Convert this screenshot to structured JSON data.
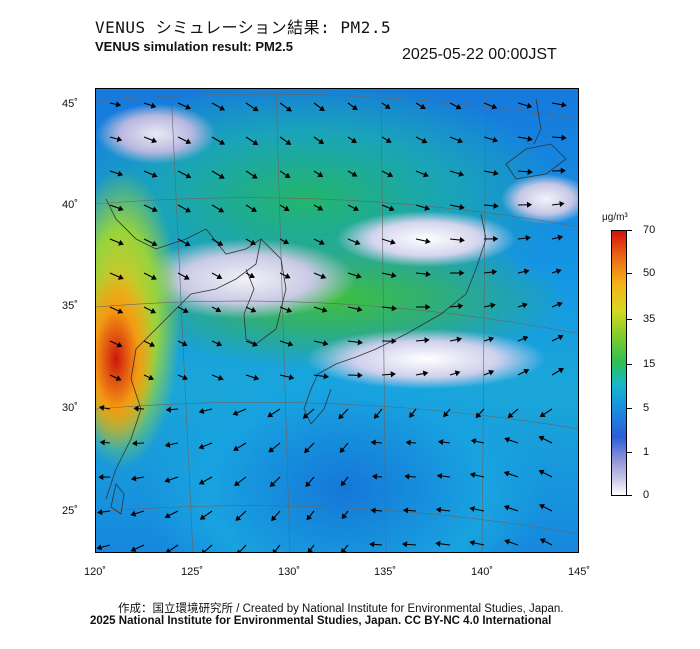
{
  "header": {
    "title_ja": "VENUS シミュレーション結果: PM2.5",
    "title_en": "VENUS simulation result: PM2.5",
    "timestamp": "2025-05-22 00:00JST"
  },
  "map": {
    "lon_ticks": [
      "120˚",
      "125˚",
      "130˚",
      "135˚",
      "140˚",
      "145˚"
    ],
    "lat_ticks": [
      "45˚",
      "40˚",
      "35˚",
      "30˚",
      "25˚"
    ],
    "lon_range": [
      120,
      145
    ],
    "lat_range": [
      23,
      46
    ],
    "colors": {
      "land_outline": "#333333",
      "grid": "#666666",
      "arrow": "#000000"
    }
  },
  "colorbar": {
    "unit": "μg/m³",
    "labels": [
      "70",
      "50",
      "35",
      "15",
      "5",
      "1",
      "0"
    ],
    "colors": [
      "#d2120e",
      "#ec6a14",
      "#f4b21a",
      "#d8d820",
      "#2cbf54",
      "#17b8c8",
      "#1a8fe0",
      "#2a5fd6",
      "#9c9cd8",
      "#ffffff"
    ]
  },
  "credits": {
    "line1": "作成：国立環境研究所 / Created by National Institute for Environmental Studies, Japan.",
    "line2": "2025 National Institute for Environmental Studies, Japan. CC BY-NC 4.0 International"
  }
}
